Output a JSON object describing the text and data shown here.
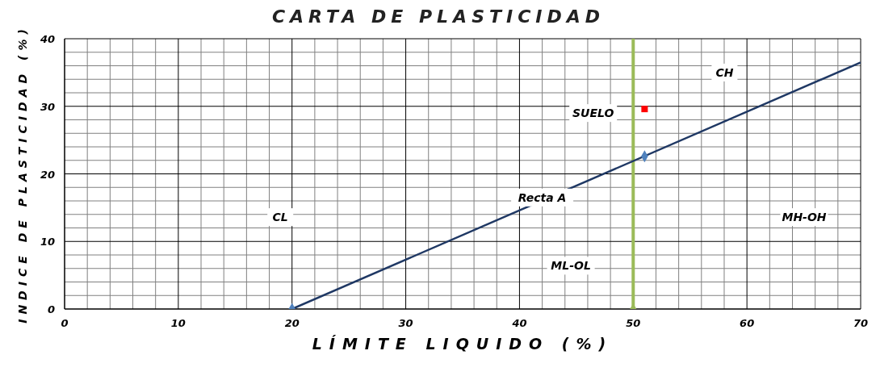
{
  "chart_data": {
    "type": "scatter",
    "title": "CARTA DE PLASTICIDAD",
    "xlabel": "LÍMITE LIQUIDO (%)",
    "ylabel": "INDICE DE PLASTICIDAD (%)",
    "xlim": [
      0,
      70
    ],
    "ylim": [
      0,
      40
    ],
    "xticks": [
      0,
      {
        "value": 2,
        "label": null
      },
      {
        "value": 4,
        "label": null
      },
      {
        "value": 6,
        "label": null
      },
      {
        "value": 8,
        "label": null
      },
      10,
      {
        "value": 12,
        "label": null
      },
      {
        "value": 14,
        "label": null
      },
      {
        "value": 16,
        "label": null
      },
      {
        "value": 18,
        "label": null
      },
      20,
      {
        "value": 22,
        "label": null
      },
      {
        "value": 24,
        "label": null
      },
      {
        "value": 26,
        "label": null
      },
      {
        "value": 28,
        "label": null
      },
      30,
      {
        "value": 32,
        "label": null
      },
      {
        "value": 34,
        "label": null
      },
      {
        "value": 36,
        "label": null
      },
      {
        "value": 38,
        "label": null
      },
      40,
      {
        "value": 42,
        "label": null
      },
      {
        "value": 44,
        "label": null
      },
      {
        "value": 46,
        "label": null
      },
      {
        "value": 48,
        "label": null
      },
      50,
      {
        "value": 52,
        "label": null
      },
      {
        "value": 54,
        "label": null
      },
      {
        "value": 56,
        "label": null
      },
      {
        "value": 58,
        "label": null
      },
      60,
      {
        "value": 62,
        "label": null
      },
      {
        "value": 64,
        "label": null
      },
      {
        "value": 66,
        "label": null
      },
      {
        "value": 68,
        "label": null
      },
      70
    ],
    "yticks": [
      0,
      {
        "value": 2,
        "label": null
      },
      {
        "value": 4,
        "label": null
      },
      {
        "value": 6,
        "label": null
      },
      {
        "value": 8,
        "label": null
      },
      10,
      {
        "value": 12,
        "label": null
      },
      {
        "value": 14,
        "label": null
      },
      {
        "value": 16,
        "label": null
      },
      {
        "value": 18,
        "label": null
      },
      20,
      {
        "value": 22,
        "label": null
      },
      {
        "value": 24,
        "label": null
      },
      {
        "value": 26,
        "label": null
      },
      {
        "value": 28,
        "label": null
      },
      30,
      {
        "value": 32,
        "label": null
      },
      {
        "value": 34,
        "label": null
      },
      {
        "value": 36,
        "label": null
      },
      {
        "value": 38,
        "label": null
      },
      40
    ],
    "grid": true,
    "series": [
      {
        "type": "line",
        "color": "#1f3864",
        "x": [
          20,
          70
        ],
        "values": [
          0,
          36.5
        ],
        "marker": "none"
      },
      {
        "color": "#4f81bd",
        "x": [
          20,
          51
        ],
        "values": [
          0,
          22.6
        ],
        "marker": "diamond"
      },
      {
        "color": "#ff0000",
        "x": [
          51
        ],
        "values": [
          29.6
        ],
        "marker": "square"
      },
      {
        "color": "#9bbb59",
        "x": [
          50
        ],
        "values": [
          0
        ],
        "marker": "triangle"
      }
    ],
    "ref_lines": [
      {
        "axis": "x",
        "value": 50,
        "color": "#9bbb59"
      }
    ],
    "annotations": [
      "CL",
      {
        "text": "Recta A",
        "x": 42,
        "y": 16.5
      },
      "ML-OL",
      "MH-OH",
      "CH",
      "SUELO"
    ]
  }
}
